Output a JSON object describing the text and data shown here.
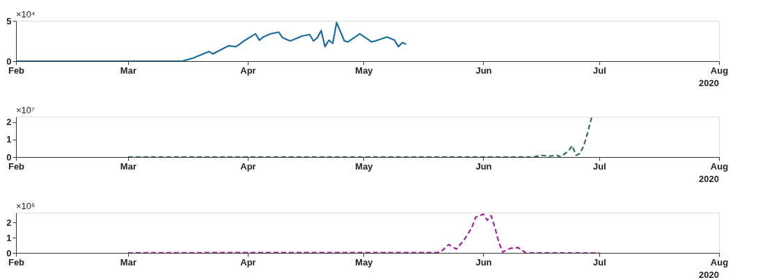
{
  "chart_data": [
    {
      "type": "line",
      "annotations": [
        "×10⁴",
        "2020"
      ],
      "xticks": [
        {
          "value": "2020-02-01",
          "label": "Feb"
        },
        {
          "value": "2020-03-01",
          "label": "Mar"
        },
        {
          "value": "2020-04-01",
          "label": "Apr"
        },
        {
          "value": "2020-05-01",
          "label": "May"
        },
        {
          "value": "2020-06-01",
          "label": "Jun"
        },
        {
          "value": "2020-07-01",
          "label": "Jul"
        },
        {
          "value": "2020-08-01",
          "label": "Aug"
        }
      ],
      "xlim": [
        "2020-02-01",
        "2020-08-01"
      ],
      "ylim": [
        0,
        5
      ],
      "yticks": [
        0,
        5
      ],
      "grid": false,
      "series": [
        {
          "color": "#1a6c9c",
          "line_style": "solid",
          "x": [
            "2020-02-01",
            "2020-03-10",
            "2020-03-15",
            "2020-03-18",
            "2020-03-22",
            "2020-03-23",
            "2020-03-27",
            "2020-03-29",
            "2020-03-31",
            "2020-04-03",
            "2020-04-04",
            "2020-04-05",
            "2020-04-07",
            "2020-04-09",
            "2020-04-10",
            "2020-04-12",
            "2020-04-15",
            "2020-04-17",
            "2020-04-18",
            "2020-04-19",
            "2020-04-20",
            "2020-04-21",
            "2020-04-22",
            "2020-04-23",
            "2020-04-24",
            "2020-04-26",
            "2020-04-27",
            "2020-04-30",
            "2020-05-03",
            "2020-05-04",
            "2020-05-07",
            "2020-05-09",
            "2020-05-10",
            "2020-05-11",
            "2020-05-12"
          ],
          "values": [
            0,
            0,
            0,
            0.4,
            1.2,
            0.9,
            1.9,
            1.8,
            2.5,
            3.4,
            2.6,
            3.0,
            3.4,
            3.6,
            2.9,
            2.5,
            3.1,
            3.3,
            2.5,
            2.9,
            3.8,
            1.8,
            2.6,
            2.2,
            4.8,
            2.5,
            2.4,
            3.4,
            2.4,
            2.5,
            3.0,
            2.6,
            1.8,
            2.3,
            2.1
          ]
        }
      ]
    },
    {
      "type": "line",
      "annotations": [
        "×10⁷",
        "2020"
      ],
      "xticks": [
        {
          "value": "2020-02-01",
          "label": "Feb"
        },
        {
          "value": "2020-03-01",
          "label": "Mar"
        },
        {
          "value": "2020-04-01",
          "label": "Apr"
        },
        {
          "value": "2020-05-01",
          "label": "May"
        },
        {
          "value": "2020-06-01",
          "label": "Jun"
        },
        {
          "value": "2020-07-01",
          "label": "Jul"
        },
        {
          "value": "2020-08-01",
          "label": "Aug"
        }
      ],
      "xlim": [
        "2020-02-01",
        "2020-08-01"
      ],
      "ylim": [
        0,
        2.3
      ],
      "yticks": [
        0,
        1,
        2
      ],
      "grid": false,
      "series": [
        {
          "color": "#2e6b57",
          "line_style": "dashed",
          "x": [
            "2020-03-01",
            "2020-06-14",
            "2020-06-16",
            "2020-06-18",
            "2020-06-20",
            "2020-06-21",
            "2020-06-23",
            "2020-06-24",
            "2020-06-25",
            "2020-06-26",
            "2020-06-27",
            "2020-06-28",
            "2020-06-29"
          ],
          "values": [
            0,
            0,
            0.1,
            0.05,
            0.1,
            0,
            0.35,
            0.65,
            0.1,
            0.2,
            0.65,
            1.4,
            2.25
          ]
        }
      ]
    },
    {
      "type": "line",
      "annotations": [
        "×10⁶",
        "2020"
      ],
      "xticks": [
        {
          "value": "2020-02-01",
          "label": "Feb"
        },
        {
          "value": "2020-03-01",
          "label": "Mar"
        },
        {
          "value": "2020-04-01",
          "label": "Apr"
        },
        {
          "value": "2020-05-01",
          "label": "May"
        },
        {
          "value": "2020-06-01",
          "label": "Jun"
        },
        {
          "value": "2020-07-01",
          "label": "Jul"
        },
        {
          "value": "2020-08-01",
          "label": "Aug"
        }
      ],
      "xlim": [
        "2020-02-01",
        "2020-08-01"
      ],
      "ylim": [
        0,
        2.65
      ],
      "yticks": [
        0,
        1,
        2
      ],
      "grid": false,
      "series": [
        {
          "color": "#a0209f",
          "line_style": "dashed",
          "x": [
            "2020-03-01",
            "2020-04-01",
            "2020-05-20",
            "2020-05-21",
            "2020-05-23",
            "2020-05-25",
            "2020-05-27",
            "2020-05-29",
            "2020-05-30",
            "2020-05-31",
            "2020-06-01",
            "2020-06-02",
            "2020-06-03",
            "2020-06-04",
            "2020-06-05",
            "2020-06-06",
            "2020-06-07",
            "2020-06-08",
            "2020-06-10",
            "2020-06-12",
            "2020-07-01"
          ],
          "values": [
            0,
            0.02,
            0.02,
            0.07,
            0.55,
            0.25,
            0.85,
            1.65,
            2.35,
            2.45,
            2.55,
            2.15,
            2.45,
            1.65,
            0.7,
            0.05,
            0.2,
            0.3,
            0.35,
            0,
            0
          ]
        }
      ]
    }
  ]
}
